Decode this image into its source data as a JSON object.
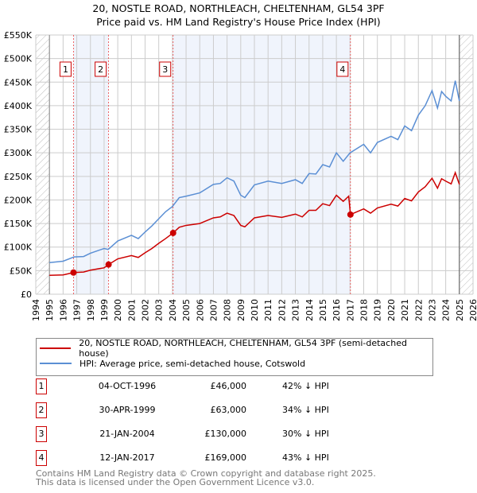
{
  "chart_data": {
    "type": "line",
    "title": "20, NOSTLE ROAD, NORTHLEACH, CHELTENHAM, GL54 3PF",
    "subtitle": "Price paid vs. HM Land Registry's House Price Index (HPI)",
    "xlim": [
      1994,
      2026
    ],
    "ylim": [
      0,
      550000
    ],
    "x_ticks": [
      1994,
      1995,
      1996,
      1997,
      1998,
      1999,
      2000,
      2001,
      2002,
      2003,
      2004,
      2005,
      2006,
      2007,
      2008,
      2009,
      2010,
      2011,
      2012,
      2013,
      2014,
      2015,
      2016,
      2017,
      2018,
      2019,
      2020,
      2021,
      2022,
      2023,
      2024,
      2025,
      2026
    ],
    "y_ticks": [
      0,
      50000,
      100000,
      150000,
      200000,
      250000,
      300000,
      350000,
      400000,
      450000,
      500000,
      550000
    ],
    "y_tick_labels": [
      "£0",
      "£50K",
      "£100K",
      "£150K",
      "£200K",
      "£250K",
      "£300K",
      "£350K",
      "£400K",
      "£450K",
      "£500K",
      "£550K"
    ],
    "grid": true,
    "series": [
      {
        "name": "20, NOSTLE ROAD, NORTHLEACH, CHELTENHAM, GL54 3PF (semi-detached house)",
        "color": "#cc0000",
        "x": [
          1995,
          1996,
          1996.76,
          1997.5,
          1998,
          1999,
          1999.33,
          2000,
          2001,
          2001.5,
          2002,
          2002.5,
          2003,
          2003.5,
          2004.05,
          2004.5,
          2005,
          2006,
          2007,
          2007.5,
          2008,
          2008.5,
          2009,
          2009.3,
          2010,
          2011,
          2012,
          2013,
          2013.5,
          2014,
          2014.5,
          2015,
          2015.5,
          2016,
          2016.5,
          2016.9,
          2017.03,
          2018,
          2018.5,
          2019,
          2020,
          2020.5,
          2021,
          2021.5,
          2022,
          2022.5,
          2023,
          2023.4,
          2023.7,
          2024,
          2024.4,
          2024.7,
          2025
        ],
        "y": [
          40000,
          41000,
          46000,
          47000,
          51000,
          56000,
          63000,
          75000,
          82000,
          78000,
          88000,
          97000,
          108000,
          118000,
          130000,
          142000,
          146000,
          150000,
          162000,
          164000,
          172000,
          167000,
          146000,
          143000,
          162000,
          167000,
          163000,
          170000,
          164000,
          178000,
          178000,
          192000,
          188000,
          210000,
          197000,
          208000,
          169000,
          181000,
          172000,
          183000,
          191000,
          187000,
          203000,
          198000,
          217000,
          228000,
          246000,
          225000,
          245000,
          240000,
          234000,
          258000,
          233000
        ]
      },
      {
        "name": "HPI: Average price, semi-detached house, Cotswold",
        "color": "#5b8fd4",
        "x": [
          1995,
          1996,
          1996.8,
          1997.5,
          1998,
          1999,
          1999.3,
          2000,
          2001,
          2001.5,
          2002,
          2002.5,
          2003,
          2003.5,
          2004,
          2004.5,
          2005,
          2006,
          2007,
          2007.5,
          2008,
          2008.5,
          2009,
          2009.3,
          2010,
          2011,
          2012,
          2013,
          2013.5,
          2014,
          2014.5,
          2015,
          2015.5,
          2016,
          2016.5,
          2017,
          2018,
          2018.5,
          2019,
          2020,
          2020.5,
          2021,
          2021.5,
          2022,
          2022.5,
          2023,
          2023.4,
          2023.7,
          2024,
          2024.4,
          2024.7,
          2025
        ],
        "y": [
          67000,
          70000,
          79000,
          80000,
          87000,
          97000,
          95000,
          113000,
          125000,
          118000,
          132000,
          145000,
          160000,
          175000,
          186000,
          205000,
          208000,
          215000,
          233000,
          235000,
          247000,
          240000,
          210000,
          205000,
          232000,
          240000,
          235000,
          243000,
          235000,
          256000,
          255000,
          275000,
          270000,
          300000,
          282000,
          300000,
          318000,
          300000,
          322000,
          335000,
          328000,
          357000,
          347000,
          380000,
          400000,
          432000,
          395000,
          430000,
          420000,
          410000,
          453000,
          410000
        ]
      }
    ],
    "sales": [
      {
        "label": "1",
        "x": 1996.76,
        "y": 46000
      },
      {
        "label": "2",
        "x": 1999.33,
        "y": 63000
      },
      {
        "label": "3",
        "x": 2004.05,
        "y": 130000
      },
      {
        "label": "4",
        "x": 2017.03,
        "y": 169000
      }
    ],
    "legend_placement": "below"
  },
  "table": [
    {
      "num": "1",
      "date": "04-OCT-1996",
      "price": "£46,000",
      "hpi": "42% ↓ HPI"
    },
    {
      "num": "2",
      "date": "30-APR-1999",
      "price": "£63,000",
      "hpi": "34% ↓ HPI"
    },
    {
      "num": "3",
      "date": "21-JAN-2004",
      "price": "£130,000",
      "hpi": "30% ↓ HPI"
    },
    {
      "num": "4",
      "date": "12-JAN-2017",
      "price": "£169,000",
      "hpi": "43% ↓ HPI"
    }
  ],
  "footer": {
    "line1": "Contains HM Land Registry data © Crown copyright and database right 2025.",
    "line2": "This data is licensed under the Open Government Licence v3.0."
  }
}
